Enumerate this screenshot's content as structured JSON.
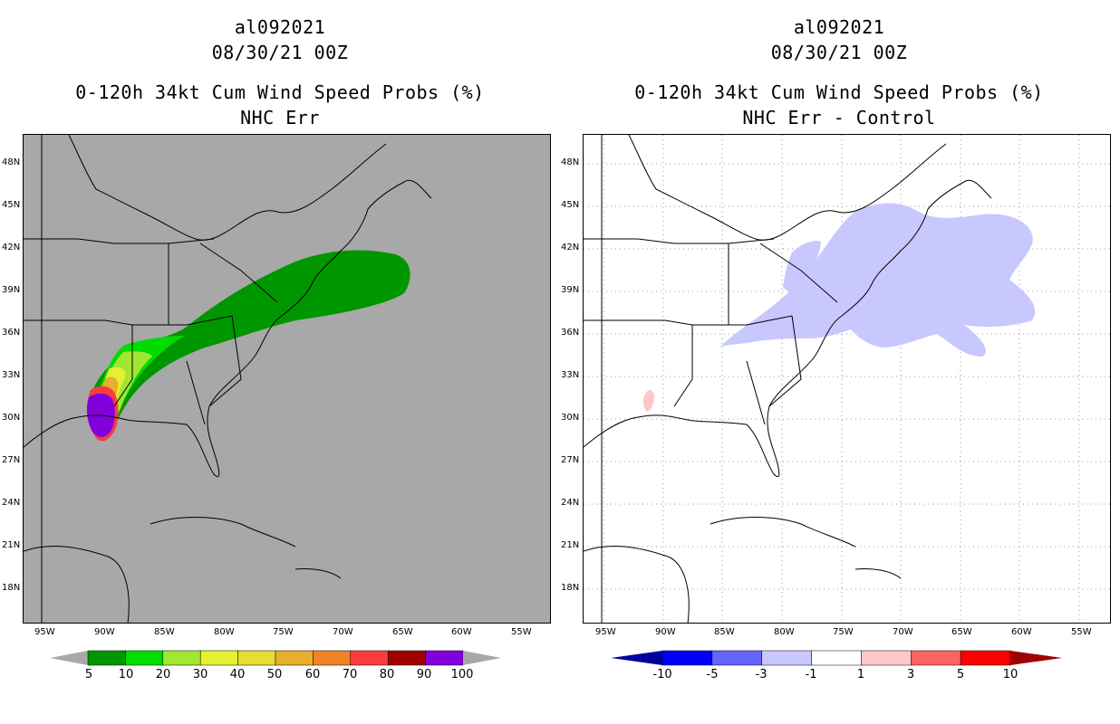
{
  "left_panel": {
    "title_line1": "al092021",
    "title_line2": "08/30/21 00Z",
    "title_line3": "0-120h 34kt Cum Wind Speed Probs (%)",
    "title_line4": "NHC Err",
    "background_color": "#a8a8a8",
    "legend": {
      "colors": [
        "#009600",
        "#00dc00",
        "#a0e632",
        "#e6f032",
        "#e6dc32",
        "#e6af2d",
        "#f08228",
        "#fa3c3c",
        "#a00000",
        "#8200dc"
      ],
      "labels": [
        "5",
        "10",
        "20",
        "30",
        "40",
        "50",
        "60",
        "70",
        "80",
        "90",
        "100"
      ]
    }
  },
  "right_panel": {
    "title_line1": "al092021",
    "title_line2": "08/30/21 00Z",
    "title_line3": "0-120h 34kt Cum Wind Speed Probs (%)",
    "title_line4": "NHC Err - Control",
    "background_color": "#ffffff",
    "legend": {
      "colors": [
        "#0000a0",
        "#0000ff",
        "#6464ff",
        "#c8c8ff",
        "#ffffff",
        "#ffc8c8",
        "#ff6464",
        "#ff0000",
        "#a00000"
      ],
      "labels": [
        "-10",
        "-5",
        "-3",
        "-1",
        "1",
        "3",
        "5",
        "10"
      ]
    }
  },
  "axes": {
    "lon_labels": [
      "95W",
      "90W",
      "85W",
      "80W",
      "75W",
      "70W",
      "65W",
      "60W",
      "55W"
    ],
    "lat_labels": [
      "48N",
      "45N",
      "42N",
      "39N",
      "36N",
      "33N",
      "30N",
      "27N",
      "24N",
      "21N",
      "18N"
    ]
  }
}
